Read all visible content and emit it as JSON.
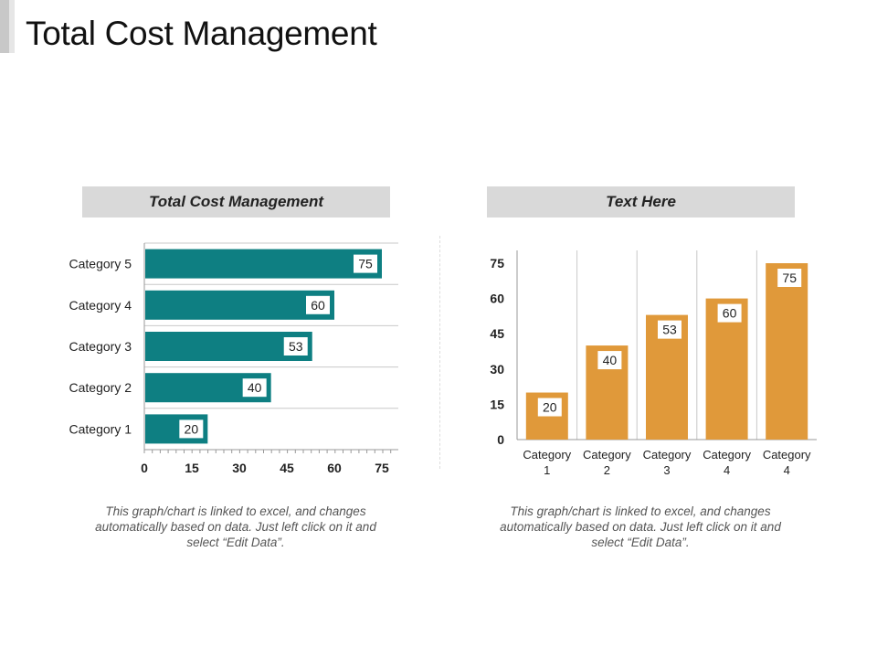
{
  "title": "Total Cost Management",
  "colors": {
    "teal": "#0e7f82",
    "orange": "#e0993a",
    "header_bg": "#d9d9d9"
  },
  "chart_data": [
    {
      "type": "bar",
      "orientation": "horizontal",
      "title": "Total Cost Management",
      "categories": [
        "Category 1",
        "Category 2",
        "Category 3",
        "Category 4",
        "Category 5"
      ],
      "values": [
        20,
        40,
        53,
        60,
        75
      ],
      "xlim": [
        0,
        75
      ],
      "ticks": [
        0,
        15,
        30,
        45,
        60,
        75
      ],
      "grid": true,
      "color": "#0e7f82",
      "caption": "This graph/chart is linked to excel, and changes automatically based on data. Just left click on it and select “Edit Data”."
    },
    {
      "type": "bar",
      "orientation": "vertical",
      "title": "Text Here",
      "categories": [
        "Category 1",
        "Category 2",
        "Category 3",
        "Category 4",
        "Category 4"
      ],
      "values": [
        20,
        40,
        53,
        60,
        75
      ],
      "ylim": [
        0,
        75
      ],
      "ticks": [
        0,
        15,
        30,
        45,
        60,
        75
      ],
      "grid": true,
      "color": "#e0993a",
      "caption": "This graph/chart is linked to excel, and changes automatically based on data. Just left click on it and select “Edit Data”."
    }
  ]
}
